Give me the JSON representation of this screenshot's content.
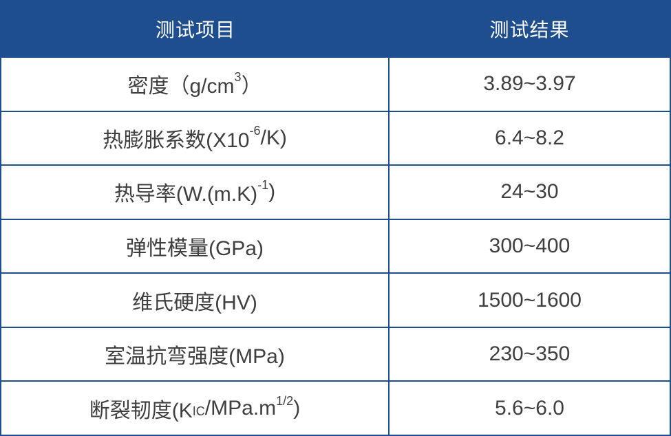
{
  "table": {
    "header": {
      "item_label": "测试项目",
      "result_label": "测试结果"
    },
    "rows": [
      {
        "item_segments": [
          {
            "t": "密度（g/cm"
          },
          {
            "t": "3",
            "s": "sup"
          },
          {
            "t": "）"
          }
        ],
        "result": "3.89~3.97"
      },
      {
        "item_segments": [
          {
            "t": "热膨胀系数(X10"
          },
          {
            "t": "-6",
            "s": "sup"
          },
          {
            "t": "/K)"
          }
        ],
        "result": "6.4~8.2"
      },
      {
        "item_segments": [
          {
            "t": "热导率(W.(m.K)"
          },
          {
            "t": "-1",
            "s": "sup"
          },
          {
            "t": ")"
          }
        ],
        "result": "24~30"
      },
      {
        "item_segments": [
          {
            "t": "弹性模量(GPa)"
          }
        ],
        "result": "300~400"
      },
      {
        "item_segments": [
          {
            "t": "维氏硬度(HV)"
          }
        ],
        "result": "1500~1600"
      },
      {
        "item_segments": [
          {
            "t": "室温抗弯强度(MPa)"
          }
        ],
        "result": "230~350"
      },
      {
        "item_segments": [
          {
            "t": "断裂韧度(K"
          },
          {
            "t": "IC",
            "s": "sub"
          },
          {
            "t": "/MPa.m"
          },
          {
            "t": "1/2",
            "s": "sup"
          },
          {
            "t": ")"
          }
        ],
        "result": "5.6~6.0"
      }
    ],
    "colors": {
      "header_bg": "#1f4e8f",
      "header_text": "#ffffff",
      "border": "#1f4e8f",
      "cell_text": "#3f3f3f",
      "cell_bg": "#ffffff"
    }
  }
}
